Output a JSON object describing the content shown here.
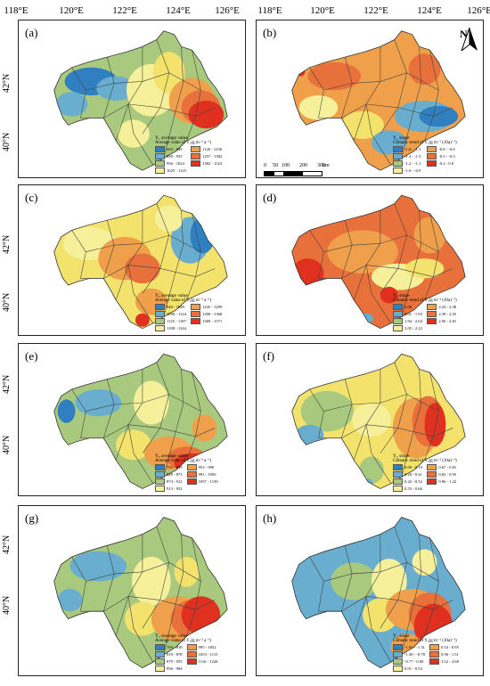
{
  "top_axis": [
    "118°E",
    "120°E",
    "122°E",
    "124°E",
    "126°E"
  ],
  "lat_labels": [
    "42°N",
    "40°N"
  ],
  "north_label": "N",
  "scale_labels": [
    "0",
    "50",
    "100",
    "200",
    "300",
    "km"
  ],
  "colors": {
    "blue": "#2f7fc1",
    "teal": "#6aaecf",
    "green": "#a9c97f",
    "yellow": "#f3e26b",
    "lyellow": "#f6f09a",
    "orange": "#f0a04a",
    "dorange": "#e8703a",
    "red": "#e03020"
  },
  "panels": [
    {
      "id": "a",
      "label": "(a)",
      "legend_title": "Y₁ average value",
      "legend_sub": "Average value of Y₁(g m⁻² a⁻¹)",
      "items": [
        "663 - 849",
        "850 - 955",
        "956 - 1024",
        "1025 - 1125",
        "1126 - 1256",
        "1257 - 1382",
        "1382 - 1523"
      ]
    },
    {
      "id": "b",
      "label": "(b)",
      "legend_title": "Y₁ slope",
      "legend_sub": "Climatic trend of Y₁(g m⁻² (10a)⁻¹)",
      "items": [
        "-1.6 - -1.5",
        "-1.4 - -1.3",
        "-1.2 - -1.1",
        "-1.0 - -0.9",
        "-0.8 - -0.6",
        "-0.5 - -0.3",
        "-0.2 - 0.0"
      ]
    },
    {
      "id": "c",
      "label": "(c)",
      "legend_title": "Y₂ average value",
      "legend_sub": "Average value of Y₂(g m⁻² a⁻¹)",
      "items": [
        "840 - 1049",
        "1050 - 1124",
        "1125 - 1187",
        "1188 - 1244",
        "1245 - 1299",
        "1300 - 1368",
        "1369 - 1571"
      ]
    },
    {
      "id": "d",
      "label": "(d)",
      "legend_title": "Y₂ slope",
      "legend_sub": "Climatic trend of Y₂(g m⁻² (10a)⁻¹)",
      "items": [
        "0.00",
        "0.01 - 1.93",
        "1.94 - 2.04",
        "2.05 - 2.22",
        "2.23 - 2.38",
        "2.39 - 2.55",
        "2.56 - 2.81"
      ]
    },
    {
      "id": "e",
      "label": "(e)",
      "legend_title": "Y₃ average value",
      "legend_sub": "Average value of Y₃(g m⁻² a⁻¹)",
      "items": [
        "755 - 819",
        "820 - 873",
        "874 - 912",
        "913 - 952",
        "953 - 990",
        "991 - 1056",
        "1057 - 1139"
      ]
    },
    {
      "id": "f",
      "label": "(f)",
      "legend_title": "Y₃ slope",
      "legend_sub": "Climatic trend of Y₃(g m⁻² (10a)⁻¹)",
      "items": [
        "0.00 - 0.19",
        "0.20 - 0.41",
        "0.42 - 0.52",
        "0.53 - 0.66",
        "0.67 - 0.81",
        "0.82 - 0.95",
        "0.96 - 1.22"
      ]
    },
    {
      "id": "g",
      "label": "(g)",
      "legend_title": "Y₄ average value",
      "legend_sub": "Average value of Y₄(g m⁻² a⁻¹)",
      "items": [
        "709 - 818",
        "819 - 878",
        "879 - 955",
        "956 - 994",
        "995 - 1052",
        "1053 - 1115",
        "1116 - 1244"
      ]
    },
    {
      "id": "h",
      "label": "(h)",
      "legend_title": "Y₄ slope",
      "legend_sub": "Climatic trend of Y₄(g m⁻² (10a)⁻¹)",
      "items": [
        "-1.91 - -1.31",
        "-1.30 - -0.78",
        "-0.77 - 0.00",
        "0.01 - 0.53",
        "0.54 - 0.95",
        "0.96 - 1.51",
        "1.52 - 2.68"
      ]
    }
  ]
}
